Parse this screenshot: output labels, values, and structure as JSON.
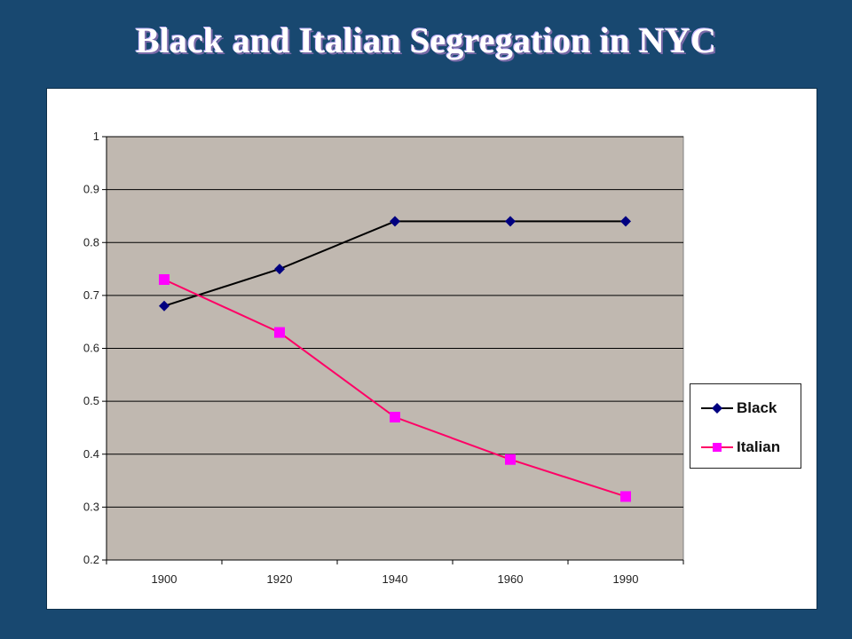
{
  "slide": {
    "title": "Black and Italian Segregation in NYC",
    "background_color": "#184870"
  },
  "chart_data": {
    "type": "line",
    "title": "",
    "xlabel": "",
    "ylabel": "",
    "categories": [
      "1900",
      "1920",
      "1940",
      "1960",
      "1990"
    ],
    "ylim": [
      0.2,
      1
    ],
    "yticks": [
      "0.2",
      "0.3",
      "0.4",
      "0.5",
      "0.6",
      "0.7",
      "0.8",
      "0.9",
      "1"
    ],
    "grid": true,
    "plot_background": "#c0b8b0",
    "legend_position": "right",
    "series": [
      {
        "name": "Black",
        "values": [
          0.68,
          0.75,
          0.84,
          0.84,
          0.84
        ],
        "color": "#000080",
        "marker": "diamond"
      },
      {
        "name": "Italian",
        "values": [
          0.73,
          0.63,
          0.47,
          0.39,
          0.32
        ],
        "color": "#ff00ff",
        "marker": "square"
      }
    ]
  }
}
